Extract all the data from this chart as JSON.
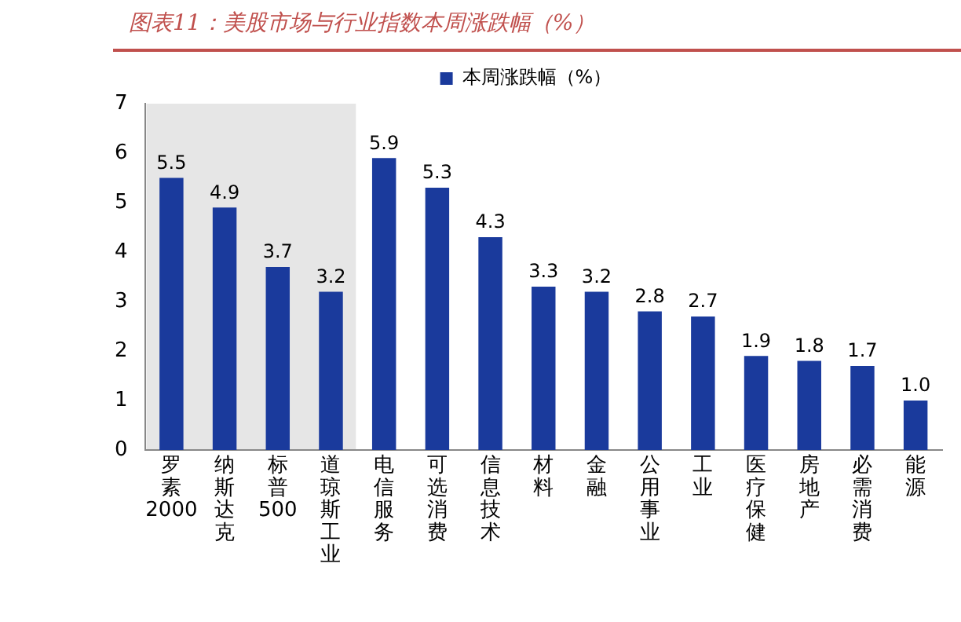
{
  "chart_data": {
    "type": "bar",
    "title": "图表11：美股市场与行业指数本周涨跌幅（%）",
    "categories": [
      "罗素2000",
      "纳斯达克",
      "标普500",
      "道琼斯工业",
      "电信服务",
      "可选消费",
      "信息技术",
      "材料",
      "金融",
      "公用事业",
      "工业",
      "医疗保健",
      "房地产",
      "必需消费",
      "能源"
    ],
    "series": [
      {
        "name": "本周涨跌幅（%）",
        "color": "#1a3a9c",
        "values": [
          5.5,
          4.9,
          3.7,
          3.2,
          5.9,
          5.3,
          4.3,
          3.3,
          3.2,
          2.8,
          2.7,
          1.9,
          1.8,
          1.7,
          1.0
        ],
        "value_labels": [
          "5.5",
          "4.9",
          "3.7",
          "3.2",
          "5.9",
          "5.3",
          "4.3",
          "3.3",
          "3.2",
          "2.8",
          "2.7",
          "1.9",
          "1.8",
          "1.7",
          "1.0"
        ]
      }
    ],
    "ylim": [
      0,
      7
    ],
    "yticks": [
      0,
      1,
      2,
      3,
      4,
      5,
      6,
      7
    ],
    "grid": false,
    "legend": "top",
    "bands": [
      {
        "axis": "x",
        "from": "罗素2000",
        "to": "道琼斯工业",
        "color": "#e6e6e6"
      }
    ]
  }
}
